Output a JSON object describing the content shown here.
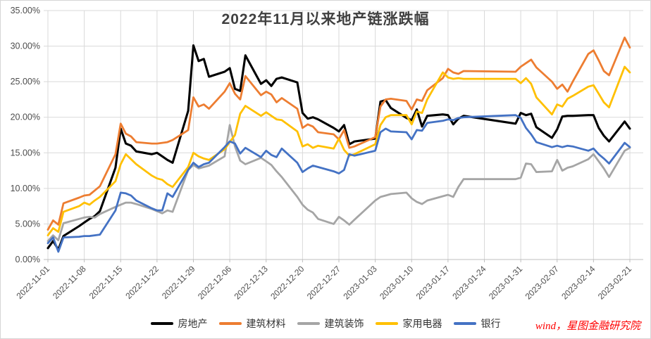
{
  "title": "2022年11月以来地产链涨跌幅",
  "watermark": "wind，星图金融研究院",
  "colors": {
    "background": "#ffffff",
    "grid": "#d9d9d9",
    "axis_line": "#bfbfbf",
    "axis_text": "#4d4d4d",
    "title_text": "#404040",
    "watermark_text": "#ff0000"
  },
  "chart_data": {
    "type": "line",
    "title": "2022年11月以来地产链涨跌幅",
    "xlabel": "",
    "ylabel": "",
    "grid": true,
    "legend_position": "bottom",
    "y_axis": {
      "min": 0,
      "max": 35,
      "step": 5,
      "tick_format": "0.00%"
    },
    "y_tick_labels": [
      "0.00%",
      "5.00%",
      "10.00%",
      "15.00%",
      "20.00%",
      "25.00%",
      "30.00%",
      "35.00%"
    ],
    "x_tick_labels": [
      "2022-11-01",
      "2022-11-08",
      "2022-11-15",
      "2022-11-22",
      "2022-11-29",
      "2022-12-06",
      "2022-12-13",
      "2022-12-20",
      "2022-12-27",
      "2023-01-03",
      "2023-01-10",
      "2023-01-17",
      "2023-01-24",
      "2023-01-31",
      "2023-02-07",
      "2023-02-14",
      "2023-02-21"
    ],
    "dates": [
      "2022-11-01",
      "2022-11-02",
      "2022-11-03",
      "2022-11-04",
      "2022-11-07",
      "2022-11-08",
      "2022-11-09",
      "2022-11-10",
      "2022-11-11",
      "2022-11-14",
      "2022-11-15",
      "2022-11-16",
      "2022-11-17",
      "2022-11-18",
      "2022-11-21",
      "2022-11-22",
      "2022-11-23",
      "2022-11-24",
      "2022-11-25",
      "2022-11-28",
      "2022-11-29",
      "2022-11-30",
      "2022-12-01",
      "2022-12-02",
      "2022-12-05",
      "2022-12-06",
      "2022-12-07",
      "2022-12-08",
      "2022-12-09",
      "2022-12-12",
      "2022-12-13",
      "2022-12-14",
      "2022-12-15",
      "2022-12-16",
      "2022-12-19",
      "2022-12-20",
      "2022-12-21",
      "2022-12-22",
      "2022-12-23",
      "2022-12-26",
      "2022-12-27",
      "2022-12-28",
      "2022-12-29",
      "2022-12-30",
      "2023-01-03",
      "2023-01-04",
      "2023-01-05",
      "2023-01-06",
      "2023-01-09",
      "2023-01-10",
      "2023-01-11",
      "2023-01-12",
      "2023-01-13",
      "2023-01-16",
      "2023-01-17",
      "2023-01-18",
      "2023-01-19",
      "2023-01-20",
      "2023-01-30",
      "2023-01-31",
      "2023-02-01",
      "2023-02-02",
      "2023-02-03",
      "2023-02-06",
      "2023-02-07",
      "2023-02-08",
      "2023-02-09",
      "2023-02-10",
      "2023-02-13",
      "2023-02-14",
      "2023-02-15",
      "2023-02-16",
      "2023-02-17",
      "2023-02-20",
      "2023-02-21"
    ],
    "series": [
      {
        "name": "房地产",
        "color": "#000000",
        "values": [
          1.6,
          2.6,
          1.4,
          3.3,
          4.7,
          5.2,
          5.7,
          6.1,
          6.8,
          12.9,
          18.4,
          16.3,
          16.0,
          15.2,
          14.8,
          15.0,
          14.5,
          14.0,
          13.6,
          20.9,
          30.1,
          27.9,
          28.2,
          25.7,
          26.4,
          26.9,
          24.0,
          23.7,
          28.7,
          24.7,
          25.2,
          24.4,
          25.4,
          25.6,
          24.9,
          20.6,
          19.8,
          20.0,
          19.7,
          18.5,
          18.0,
          18.9,
          16.2,
          16.6,
          17.0,
          22.2,
          22.4,
          21.3,
          19.9,
          19.6,
          21.1,
          18.7,
          20.2,
          20.4,
          20.3,
          19.0,
          19.8,
          20.2,
          19.1,
          20.6,
          20.3,
          20.5,
          18.6,
          17.1,
          18.3,
          20.1,
          20.2,
          20.2,
          20.3,
          20.3,
          18.5,
          17.4,
          16.6,
          19.4,
          18.4
        ]
      },
      {
        "name": "建筑材料",
        "color": "#ED7D31",
        "values": [
          4.2,
          5.5,
          4.9,
          7.9,
          8.7,
          9.0,
          9.1,
          9.7,
          10.3,
          14.8,
          19.1,
          17.7,
          17.3,
          16.5,
          16.3,
          16.3,
          16.4,
          16.5,
          16.8,
          18.2,
          22.8,
          21.5,
          21.8,
          21.2,
          23.6,
          24.8,
          23.3,
          22.5,
          25.8,
          23.1,
          23.6,
          23.2,
          22.1,
          22.7,
          21.2,
          18.5,
          19.0,
          18.7,
          17.9,
          17.6,
          16.9,
          18.2,
          15.7,
          15.9,
          17.2,
          21.5,
          22.5,
          22.6,
          22.3,
          21.1,
          22.5,
          22.3,
          23.8,
          25.5,
          26.8,
          26.3,
          26.1,
          26.5,
          26.4,
          27.1,
          27.6,
          28.1,
          27.0,
          25.0,
          24.0,
          24.6,
          23.6,
          25.0,
          28.9,
          29.4,
          28.0,
          26.5,
          25.9,
          31.2,
          29.8
        ]
      },
      {
        "name": "建筑装饰",
        "color": "#A5A5A5",
        "values": [
          2.6,
          3.4,
          2.7,
          5.1,
          5.7,
          5.9,
          6.0,
          5.9,
          6.4,
          7.4,
          7.7,
          8.0,
          8.0,
          7.8,
          7.1,
          6.8,
          6.5,
          6.9,
          6.7,
          12.6,
          13.3,
          12.8,
          13.0,
          13.2,
          14.5,
          18.9,
          15.9,
          13.9,
          13.4,
          14.3,
          13.8,
          13.3,
          12.4,
          11.6,
          8.8,
          7.7,
          7.0,
          6.6,
          5.7,
          5.0,
          6.0,
          5.5,
          4.9,
          5.6,
          8.3,
          8.8,
          9.0,
          9.2,
          9.4,
          8.6,
          8.1,
          7.8,
          8.3,
          8.9,
          9.1,
          8.8,
          10.2,
          11.3,
          11.3,
          11.5,
          13.5,
          13.4,
          12.3,
          12.4,
          14.0,
          12.5,
          12.9,
          13.1,
          14.1,
          14.8,
          13.8,
          12.8,
          11.6,
          15.3,
          15.7
        ]
      },
      {
        "name": "家用电器",
        "color": "#FFC000",
        "values": [
          3.4,
          4.4,
          3.9,
          6.7,
          7.5,
          8.0,
          7.7,
          8.3,
          8.8,
          11.0,
          13.4,
          14.8,
          14.1,
          13.4,
          11.8,
          11.4,
          11.2,
          10.6,
          10.2,
          13.0,
          15.0,
          14.5,
          14.2,
          14.0,
          15.5,
          16.5,
          17.5,
          20.5,
          21.6,
          20.2,
          20.7,
          20.2,
          19.7,
          19.6,
          18.0,
          15.9,
          16.2,
          15.7,
          16.0,
          15.6,
          17.0,
          15.4,
          14.6,
          14.8,
          16.2,
          18.9,
          20.0,
          20.3,
          20.3,
          19.0,
          20.8,
          20.6,
          22.5,
          26.3,
          25.6,
          25.4,
          25.5,
          25.4,
          25.4,
          24.8,
          25.5,
          24.7,
          22.8,
          20.4,
          21.8,
          21.5,
          22.6,
          23.0,
          24.3,
          24.5,
          23.3,
          22.1,
          21.4,
          27.1,
          26.3
        ]
      },
      {
        "name": "银行",
        "color": "#4472C4",
        "values": [
          2.3,
          3.1,
          1.1,
          3.1,
          3.2,
          3.3,
          3.3,
          3.4,
          3.5,
          6.9,
          9.4,
          9.3,
          9.0,
          8.3,
          7.2,
          6.9,
          6.9,
          9.3,
          8.8,
          12.6,
          13.6,
          13.0,
          13.4,
          13.6,
          15.8,
          16.6,
          16.3,
          14.9,
          15.7,
          14.4,
          15.3,
          14.7,
          14.4,
          15.6,
          13.6,
          12.3,
          12.8,
          13.2,
          13.0,
          12.4,
          12.1,
          12.6,
          14.8,
          14.6,
          15.3,
          17.9,
          18.4,
          18.0,
          17.9,
          16.9,
          18.2,
          18.1,
          19.2,
          19.5,
          19.7,
          19.6,
          19.9,
          20.0,
          20.3,
          19.9,
          18.5,
          17.6,
          16.5,
          15.8,
          16.0,
          15.8,
          16.0,
          15.9,
          15.3,
          15.6,
          14.8,
          14.2,
          13.5,
          16.4,
          15.8
        ]
      }
    ]
  }
}
